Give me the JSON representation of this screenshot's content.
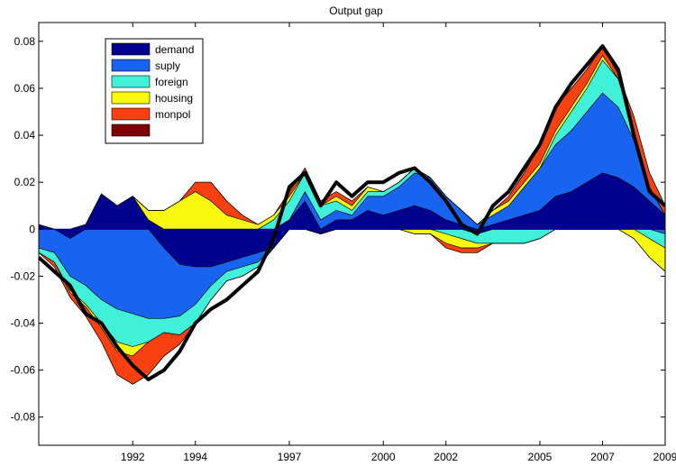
{
  "chart_data": {
    "type": "area",
    "title": "Output gap",
    "xlabel": "",
    "ylabel": "",
    "xlim": [
      1989.0,
      2009.0
    ],
    "ylim": [
      -0.092,
      0.088
    ],
    "x_ticks": [
      1992,
      1994,
      1997,
      2000,
      2002,
      2005,
      2007,
      2009
    ],
    "y_ticks": [
      -0.08,
      -0.06,
      -0.04,
      -0.02,
      0,
      0.02,
      0.04,
      0.06,
      0.08
    ],
    "y_tick_labels": [
      "-0.08",
      "-0.06",
      "-0.04",
      "-0.02",
      "0",
      "0.02",
      "0.04",
      "0.06",
      "0.08"
    ],
    "grid": false,
    "legend_position": "top-left",
    "x": [
      1989.0,
      1989.5,
      1990.0,
      1990.5,
      1991.0,
      1991.5,
      1992.0,
      1992.5,
      1993.0,
      1993.5,
      1994.0,
      1994.5,
      1995.0,
      1995.5,
      1996.0,
      1996.5,
      1997.0,
      1997.5,
      1998.0,
      1998.5,
      1999.0,
      1999.5,
      2000.0,
      2000.5,
      2001.0,
      2001.5,
      2002.0,
      2002.5,
      2003.0,
      2003.5,
      2004.0,
      2004.5,
      2005.0,
      2005.5,
      2006.0,
      2006.5,
      2007.0,
      2007.5,
      2008.0,
      2008.5,
      2009.0
    ],
    "series": [
      {
        "name": "demand",
        "color": "#00008f",
        "values": [
          0.002,
          0.0,
          -0.004,
          0.002,
          0.015,
          0.01,
          0.014,
          0.004,
          -0.008,
          -0.015,
          -0.016,
          -0.016,
          -0.014,
          -0.012,
          -0.01,
          -0.008,
          0.004,
          0.012,
          -0.002,
          0.004,
          0.004,
          0.008,
          0.006,
          0.008,
          0.01,
          0.008,
          0.004,
          0.002,
          -0.002,
          0.002,
          0.004,
          0.006,
          0.008,
          0.014,
          0.016,
          0.02,
          0.024,
          0.022,
          0.018,
          0.012,
          0.006
        ]
      },
      {
        "name": "suply",
        "color": "#1864f0",
        "values": [
          -0.008,
          -0.01,
          -0.016,
          -0.024,
          -0.03,
          -0.034,
          -0.036,
          -0.038,
          -0.03,
          -0.022,
          -0.016,
          -0.008,
          -0.004,
          -0.004,
          -0.004,
          0.0,
          0.0,
          0.004,
          0.004,
          0.004,
          0.002,
          0.006,
          0.008,
          0.01,
          0.014,
          0.014,
          0.01,
          0.006,
          0.002,
          0.004,
          0.006,
          0.012,
          0.018,
          0.022,
          0.026,
          0.03,
          0.034,
          0.03,
          0.02,
          0.006,
          -0.002
        ]
      },
      {
        "name": "foreign",
        "color": "#40f0d8",
        "values": [
          -0.002,
          -0.004,
          -0.006,
          -0.008,
          -0.01,
          -0.014,
          -0.014,
          -0.01,
          -0.006,
          -0.008,
          -0.008,
          -0.006,
          -0.004,
          -0.004,
          -0.002,
          0.004,
          0.008,
          0.008,
          0.006,
          0.004,
          0.002,
          0.002,
          0.002,
          0.002,
          0.002,
          0.0,
          -0.002,
          -0.004,
          -0.004,
          -0.006,
          -0.006,
          -0.006,
          -0.004,
          0.004,
          0.008,
          0.01,
          0.014,
          0.012,
          0.004,
          -0.004,
          -0.006
        ]
      },
      {
        "name": "housing",
        "color": "#f8f810",
        "values": [
          0.0,
          0.0,
          -0.001,
          -0.001,
          -0.002,
          -0.004,
          -0.004,
          0.004,
          0.008,
          0.012,
          0.016,
          0.012,
          0.006,
          0.004,
          0.002,
          0.002,
          0.002,
          0.0,
          0.0,
          0.002,
          0.002,
          0.002,
          0.0,
          0.0,
          -0.002,
          -0.002,
          -0.004,
          -0.004,
          -0.002,
          0.002,
          0.002,
          0.002,
          0.002,
          0.002,
          0.002,
          0.002,
          0.002,
          0.0,
          -0.004,
          -0.008,
          -0.01
        ]
      },
      {
        "name": "monpol",
        "color": "#f84010",
        "values": [
          0.0,
          -0.002,
          -0.002,
          -0.004,
          -0.006,
          -0.01,
          -0.012,
          -0.014,
          -0.01,
          -0.004,
          0.004,
          0.008,
          0.006,
          0.002,
          0.0,
          0.0,
          0.002,
          0.002,
          0.002,
          0.002,
          0.002,
          0.0,
          0.0,
          0.0,
          0.0,
          0.0,
          -0.002,
          -0.002,
          -0.002,
          0.0,
          0.002,
          0.004,
          0.008,
          0.01,
          0.008,
          0.006,
          0.004,
          0.002,
          0.006,
          0.006,
          0.004
        ]
      },
      {
        "name": "",
        "color": "#800000",
        "values": [
          0,
          0,
          0,
          0,
          0,
          0,
          0,
          0,
          0,
          0,
          0,
          0,
          0,
          0,
          0,
          0,
          0,
          0,
          0,
          0,
          0,
          0,
          0,
          0,
          0,
          0,
          0,
          0,
          0,
          0,
          0,
          0,
          0,
          0,
          0,
          0,
          0,
          0,
          0,
          0,
          0
        ]
      }
    ],
    "total_line": {
      "color": "#000000",
      "values": [
        -0.012,
        -0.018,
        -0.024,
        -0.036,
        -0.04,
        -0.05,
        -0.058,
        -0.064,
        -0.06,
        -0.052,
        -0.04,
        -0.034,
        -0.03,
        -0.024,
        -0.018,
        -0.004,
        0.018,
        0.024,
        0.01,
        0.02,
        0.014,
        0.02,
        0.02,
        0.024,
        0.026,
        0.02,
        0.012,
        0.002,
        -0.002,
        0.01,
        0.016,
        0.026,
        0.036,
        0.052,
        0.062,
        0.07,
        0.078,
        0.068,
        0.04,
        0.016,
        0.01
      ]
    }
  }
}
